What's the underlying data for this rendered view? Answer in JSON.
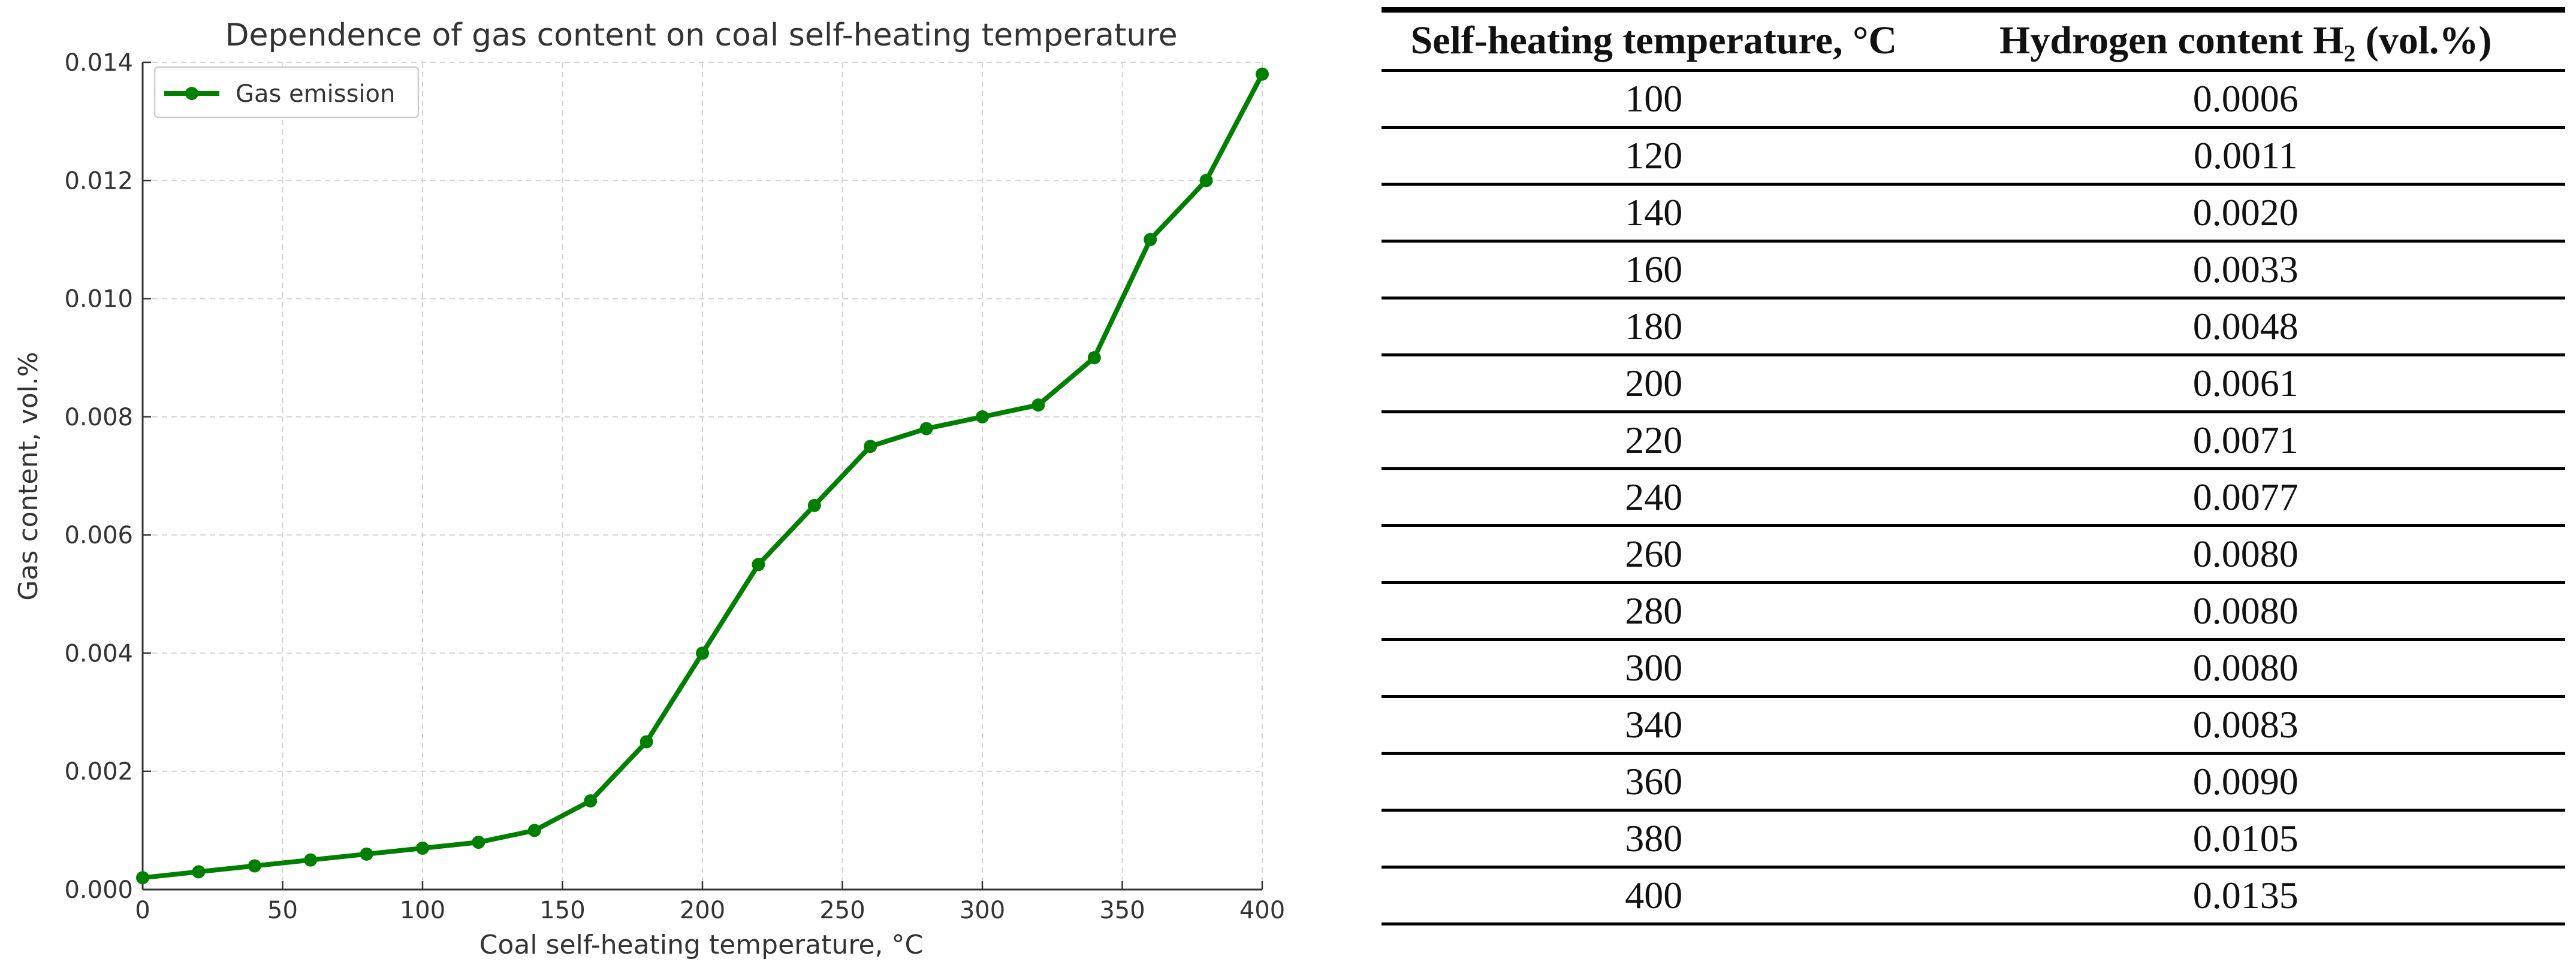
{
  "chart_data": {
    "type": "line",
    "title": "Dependence of gas content on coal self-heating temperature",
    "xlabel": "Coal self-heating temperature, °C",
    "ylabel": "Gas content, vol.%",
    "xlim": [
      0,
      400
    ],
    "ylim": [
      0,
      0.014
    ],
    "x_ticks": [
      "0",
      "50",
      "100",
      "150",
      "200",
      "250",
      "300",
      "350",
      "400"
    ],
    "y_ticks": [
      "0.000",
      "0.002",
      "0.004",
      "0.006",
      "0.008",
      "0.010",
      "0.012",
      "0.014"
    ],
    "grid": true,
    "legend_position": "top-left",
    "series": [
      {
        "name": "Gas emission",
        "color": "#007f00",
        "x": [
          0,
          20,
          40,
          60,
          80,
          100,
          120,
          140,
          160,
          180,
          200,
          220,
          240,
          260,
          280,
          300,
          320,
          340,
          360,
          380,
          400
        ],
        "y": [
          0.0002,
          0.0003,
          0.0004,
          0.0005,
          0.0006,
          0.0007,
          0.0008,
          0.001,
          0.0015,
          0.0025,
          0.004,
          0.0055,
          0.0065,
          0.0075,
          0.0078,
          0.008,
          0.0082,
          0.009,
          0.011,
          0.012,
          0.0138
        ]
      }
    ]
  },
  "table": {
    "headers": [
      "Self-heating temperature, °C",
      "Hydrogen content H₂ (vol.%)"
    ],
    "rows": [
      [
        "100",
        "0.0006"
      ],
      [
        "120",
        "0.0011"
      ],
      [
        "140",
        "0.0020"
      ],
      [
        "160",
        "0.0033"
      ],
      [
        "180",
        "0.0048"
      ],
      [
        "200",
        "0.0061"
      ],
      [
        "220",
        "0.0071"
      ],
      [
        "240",
        "0.0077"
      ],
      [
        "260",
        "0.0080"
      ],
      [
        "280",
        "0.0080"
      ],
      [
        "300",
        "0.0080"
      ],
      [
        "340",
        "0.0083"
      ],
      [
        "360",
        "0.0090"
      ],
      [
        "380",
        "0.0105"
      ],
      [
        "400",
        "0.0135"
      ]
    ]
  }
}
